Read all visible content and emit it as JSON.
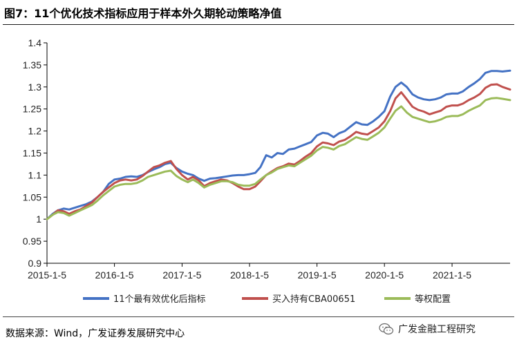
{
  "figure": {
    "title": "图7：11个优化技术指标应用于样本外久期轮动策略净值",
    "source": "数据来源：Wind，广发证券发展研究中心",
    "watermark": "广发金融工程研究",
    "watermark_icon": "wechat-icon"
  },
  "chart_data": {
    "type": "line",
    "title": "",
    "xlabel": "",
    "ylabel": "",
    "ylim": [
      0.9,
      1.4
    ],
    "yticks": [
      "0.9",
      "0.95",
      "1",
      "1.05",
      "1.1",
      "1.15",
      "1.2",
      "1.25",
      "1.3",
      "1.35",
      "1.4"
    ],
    "xlim": [
      "2015-01-05",
      "2021-11-15"
    ],
    "xticks": [
      "2015-1-5",
      "2016-1-5",
      "2017-1-5",
      "2018-1-5",
      "2019-1-5",
      "2020-1-5",
      "2021-1-5"
    ],
    "grid": false,
    "legend": "bottom",
    "series": [
      {
        "name": "11个最有效优化后指标",
        "color": "#4472c4",
        "points": [
          [
            "2015-01-05",
            1.0
          ],
          [
            "2015-02-05",
            1.012
          ],
          [
            "2015-03-05",
            1.02
          ],
          [
            "2015-04-05",
            1.024
          ],
          [
            "2015-05-05",
            1.022
          ],
          [
            "2015-06-05",
            1.026
          ],
          [
            "2015-07-05",
            1.03
          ],
          [
            "2015-08-05",
            1.034
          ],
          [
            "2015-09-05",
            1.04
          ],
          [
            "2015-10-05",
            1.05
          ],
          [
            "2015-11-05",
            1.062
          ],
          [
            "2015-12-05",
            1.08
          ],
          [
            "2016-01-05",
            1.09
          ],
          [
            "2016-02-05",
            1.092
          ],
          [
            "2016-03-05",
            1.096
          ],
          [
            "2016-04-05",
            1.097
          ],
          [
            "2016-05-05",
            1.096
          ],
          [
            "2016-06-05",
            1.1
          ],
          [
            "2016-07-05",
            1.107
          ],
          [
            "2016-08-05",
            1.113
          ],
          [
            "2016-09-05",
            1.118
          ],
          [
            "2016-10-05",
            1.125
          ],
          [
            "2016-11-05",
            1.128
          ],
          [
            "2016-12-05",
            1.116
          ],
          [
            "2017-01-05",
            1.108
          ],
          [
            "2017-02-05",
            1.103
          ],
          [
            "2017-03-05",
            1.1
          ],
          [
            "2017-04-05",
            1.092
          ],
          [
            "2017-05-05",
            1.087
          ],
          [
            "2017-06-05",
            1.092
          ],
          [
            "2017-07-05",
            1.093
          ],
          [
            "2017-08-05",
            1.095
          ],
          [
            "2017-09-05",
            1.097
          ],
          [
            "2017-10-05",
            1.099
          ],
          [
            "2017-11-05",
            1.1
          ],
          [
            "2017-12-05",
            1.1
          ],
          [
            "2018-01-05",
            1.102
          ],
          [
            "2018-02-05",
            1.105
          ],
          [
            "2018-03-05",
            1.118
          ],
          [
            "2018-04-05",
            1.145
          ],
          [
            "2018-05-05",
            1.14
          ],
          [
            "2018-06-05",
            1.15
          ],
          [
            "2018-07-05",
            1.148
          ],
          [
            "2018-08-05",
            1.158
          ],
          [
            "2018-09-05",
            1.16
          ],
          [
            "2018-10-05",
            1.165
          ],
          [
            "2018-11-05",
            1.17
          ],
          [
            "2018-12-05",
            1.175
          ],
          [
            "2019-01-05",
            1.19
          ],
          [
            "2019-02-05",
            1.196
          ],
          [
            "2019-03-05",
            1.194
          ],
          [
            "2019-04-05",
            1.186
          ],
          [
            "2019-05-05",
            1.195
          ],
          [
            "2019-06-05",
            1.2
          ],
          [
            "2019-07-05",
            1.21
          ],
          [
            "2019-08-05",
            1.22
          ],
          [
            "2019-09-05",
            1.215
          ],
          [
            "2019-10-05",
            1.214
          ],
          [
            "2019-11-05",
            1.222
          ],
          [
            "2019-12-05",
            1.232
          ],
          [
            "2020-01-05",
            1.245
          ],
          [
            "2020-02-05",
            1.278
          ],
          [
            "2020-03-05",
            1.3
          ],
          [
            "2020-04-05",
            1.31
          ],
          [
            "2020-05-05",
            1.3
          ],
          [
            "2020-06-05",
            1.283
          ],
          [
            "2020-07-05",
            1.276
          ],
          [
            "2020-08-05",
            1.272
          ],
          [
            "2020-09-05",
            1.27
          ],
          [
            "2020-10-05",
            1.272
          ],
          [
            "2020-11-05",
            1.276
          ],
          [
            "2020-12-05",
            1.283
          ],
          [
            "2021-01-05",
            1.285
          ],
          [
            "2021-02-05",
            1.285
          ],
          [
            "2021-03-05",
            1.29
          ],
          [
            "2021-04-05",
            1.3
          ],
          [
            "2021-05-05",
            1.308
          ],
          [
            "2021-06-05",
            1.318
          ],
          [
            "2021-07-05",
            1.332
          ],
          [
            "2021-08-05",
            1.336
          ],
          [
            "2021-09-05",
            1.336
          ],
          [
            "2021-10-05",
            1.335
          ],
          [
            "2021-11-15",
            1.337
          ]
        ]
      },
      {
        "name": "买入持有CBA00651",
        "color": "#c0504d",
        "points": [
          [
            "2015-01-05",
            1.0
          ],
          [
            "2015-02-05",
            1.01
          ],
          [
            "2015-03-05",
            1.02
          ],
          [
            "2015-04-05",
            1.018
          ],
          [
            "2015-05-05",
            1.012
          ],
          [
            "2015-06-05",
            1.018
          ],
          [
            "2015-07-05",
            1.022
          ],
          [
            "2015-08-05",
            1.03
          ],
          [
            "2015-09-05",
            1.038
          ],
          [
            "2015-10-05",
            1.05
          ],
          [
            "2015-11-05",
            1.062
          ],
          [
            "2015-12-05",
            1.072
          ],
          [
            "2016-01-05",
            1.082
          ],
          [
            "2016-02-05",
            1.088
          ],
          [
            "2016-03-05",
            1.09
          ],
          [
            "2016-04-05",
            1.088
          ],
          [
            "2016-05-05",
            1.09
          ],
          [
            "2016-06-05",
            1.098
          ],
          [
            "2016-07-05",
            1.108
          ],
          [
            "2016-08-05",
            1.118
          ],
          [
            "2016-09-05",
            1.122
          ],
          [
            "2016-10-05",
            1.128
          ],
          [
            "2016-11-05",
            1.132
          ],
          [
            "2016-12-05",
            1.114
          ],
          [
            "2017-01-05",
            1.1
          ],
          [
            "2017-02-05",
            1.09
          ],
          [
            "2017-03-05",
            1.096
          ],
          [
            "2017-04-05",
            1.088
          ],
          [
            "2017-05-05",
            1.075
          ],
          [
            "2017-06-05",
            1.082
          ],
          [
            "2017-07-05",
            1.086
          ],
          [
            "2017-08-05",
            1.09
          ],
          [
            "2017-09-05",
            1.088
          ],
          [
            "2017-10-05",
            1.082
          ],
          [
            "2017-11-05",
            1.074
          ],
          [
            "2017-12-05",
            1.068
          ],
          [
            "2018-01-05",
            1.068
          ],
          [
            "2018-02-05",
            1.074
          ],
          [
            "2018-03-05",
            1.086
          ],
          [
            "2018-04-05",
            1.1
          ],
          [
            "2018-05-05",
            1.108
          ],
          [
            "2018-06-05",
            1.116
          ],
          [
            "2018-07-05",
            1.12
          ],
          [
            "2018-08-05",
            1.126
          ],
          [
            "2018-09-05",
            1.124
          ],
          [
            "2018-10-05",
            1.132
          ],
          [
            "2018-11-05",
            1.142
          ],
          [
            "2018-12-05",
            1.15
          ],
          [
            "2019-01-05",
            1.165
          ],
          [
            "2019-02-05",
            1.174
          ],
          [
            "2019-03-05",
            1.172
          ],
          [
            "2019-04-05",
            1.168
          ],
          [
            "2019-05-05",
            1.176
          ],
          [
            "2019-06-05",
            1.18
          ],
          [
            "2019-07-05",
            1.188
          ],
          [
            "2019-08-05",
            1.198
          ],
          [
            "2019-09-05",
            1.194
          ],
          [
            "2019-10-05",
            1.192
          ],
          [
            "2019-11-05",
            1.2
          ],
          [
            "2019-12-05",
            1.208
          ],
          [
            "2020-01-05",
            1.222
          ],
          [
            "2020-02-05",
            1.245
          ],
          [
            "2020-03-05",
            1.274
          ],
          [
            "2020-04-05",
            1.288
          ],
          [
            "2020-05-05",
            1.272
          ],
          [
            "2020-06-05",
            1.255
          ],
          [
            "2020-07-05",
            1.248
          ],
          [
            "2020-08-05",
            1.244
          ],
          [
            "2020-09-05",
            1.238
          ],
          [
            "2020-10-05",
            1.242
          ],
          [
            "2020-11-05",
            1.246
          ],
          [
            "2020-12-05",
            1.255
          ],
          [
            "2021-01-05",
            1.258
          ],
          [
            "2021-02-05",
            1.258
          ],
          [
            "2021-03-05",
            1.262
          ],
          [
            "2021-04-05",
            1.27
          ],
          [
            "2021-05-05",
            1.276
          ],
          [
            "2021-06-05",
            1.284
          ],
          [
            "2021-07-05",
            1.298
          ],
          [
            "2021-08-05",
            1.305
          ],
          [
            "2021-09-05",
            1.306
          ],
          [
            "2021-10-05",
            1.3
          ],
          [
            "2021-11-15",
            1.294
          ]
        ]
      },
      {
        "name": "等权配置",
        "color": "#9bbb59",
        "points": [
          [
            "2015-01-05",
            1.0
          ],
          [
            "2015-02-05",
            1.01
          ],
          [
            "2015-03-05",
            1.016
          ],
          [
            "2015-04-05",
            1.014
          ],
          [
            "2015-05-05",
            1.008
          ],
          [
            "2015-06-05",
            1.014
          ],
          [
            "2015-07-05",
            1.02
          ],
          [
            "2015-08-05",
            1.026
          ],
          [
            "2015-09-05",
            1.032
          ],
          [
            "2015-10-05",
            1.042
          ],
          [
            "2015-11-05",
            1.054
          ],
          [
            "2015-12-05",
            1.064
          ],
          [
            "2016-01-05",
            1.074
          ],
          [
            "2016-02-05",
            1.078
          ],
          [
            "2016-03-05",
            1.08
          ],
          [
            "2016-04-05",
            1.08
          ],
          [
            "2016-05-05",
            1.082
          ],
          [
            "2016-06-05",
            1.088
          ],
          [
            "2016-07-05",
            1.096
          ],
          [
            "2016-08-05",
            1.1
          ],
          [
            "2016-09-05",
            1.104
          ],
          [
            "2016-10-05",
            1.108
          ],
          [
            "2016-11-05",
            1.11
          ],
          [
            "2016-12-05",
            1.098
          ],
          [
            "2017-01-05",
            1.09
          ],
          [
            "2017-02-05",
            1.084
          ],
          [
            "2017-03-05",
            1.09
          ],
          [
            "2017-04-05",
            1.082
          ],
          [
            "2017-05-05",
            1.072
          ],
          [
            "2017-06-05",
            1.078
          ],
          [
            "2017-07-05",
            1.082
          ],
          [
            "2017-08-05",
            1.086
          ],
          [
            "2017-09-05",
            1.086
          ],
          [
            "2017-10-05",
            1.084
          ],
          [
            "2017-11-05",
            1.078
          ],
          [
            "2017-12-05",
            1.076
          ],
          [
            "2018-01-05",
            1.076
          ],
          [
            "2018-02-05",
            1.08
          ],
          [
            "2018-03-05",
            1.09
          ],
          [
            "2018-04-05",
            1.1
          ],
          [
            "2018-05-05",
            1.106
          ],
          [
            "2018-06-05",
            1.114
          ],
          [
            "2018-07-05",
            1.118
          ],
          [
            "2018-08-05",
            1.122
          ],
          [
            "2018-09-05",
            1.12
          ],
          [
            "2018-10-05",
            1.128
          ],
          [
            "2018-11-05",
            1.136
          ],
          [
            "2018-12-05",
            1.144
          ],
          [
            "2019-01-05",
            1.156
          ],
          [
            "2019-02-05",
            1.164
          ],
          [
            "2019-03-05",
            1.162
          ],
          [
            "2019-04-05",
            1.158
          ],
          [
            "2019-05-05",
            1.166
          ],
          [
            "2019-06-05",
            1.17
          ],
          [
            "2019-07-05",
            1.178
          ],
          [
            "2019-08-05",
            1.186
          ],
          [
            "2019-09-05",
            1.182
          ],
          [
            "2019-10-05",
            1.18
          ],
          [
            "2019-11-05",
            1.188
          ],
          [
            "2019-12-05",
            1.196
          ],
          [
            "2020-01-05",
            1.208
          ],
          [
            "2020-02-05",
            1.228
          ],
          [
            "2020-03-05",
            1.246
          ],
          [
            "2020-04-05",
            1.256
          ],
          [
            "2020-05-05",
            1.242
          ],
          [
            "2020-06-05",
            1.232
          ],
          [
            "2020-07-05",
            1.228
          ],
          [
            "2020-08-05",
            1.224
          ],
          [
            "2020-09-05",
            1.22
          ],
          [
            "2020-10-05",
            1.222
          ],
          [
            "2020-11-05",
            1.226
          ],
          [
            "2020-12-05",
            1.232
          ],
          [
            "2021-01-05",
            1.234
          ],
          [
            "2021-02-05",
            1.234
          ],
          [
            "2021-03-05",
            1.238
          ],
          [
            "2021-04-05",
            1.246
          ],
          [
            "2021-05-05",
            1.252
          ],
          [
            "2021-06-05",
            1.258
          ],
          [
            "2021-07-05",
            1.27
          ],
          [
            "2021-08-05",
            1.274
          ],
          [
            "2021-09-05",
            1.275
          ],
          [
            "2021-10-05",
            1.273
          ],
          [
            "2021-11-15",
            1.27
          ]
        ]
      }
    ]
  }
}
